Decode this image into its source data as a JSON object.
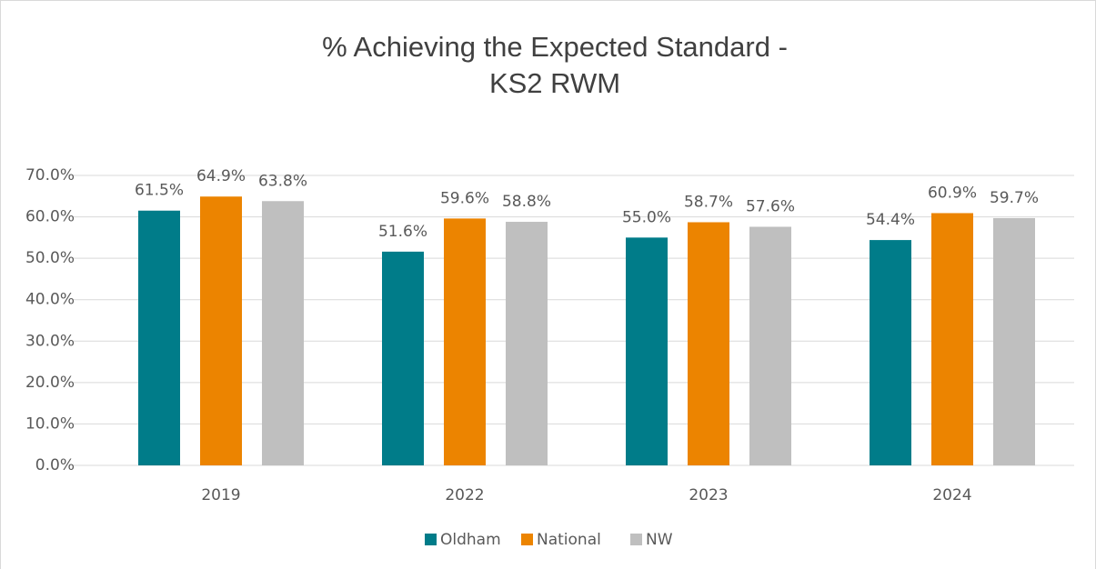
{
  "chart_data": {
    "type": "bar",
    "title": [
      "% Achieving the Expected Standard -",
      "KS2 RWM"
    ],
    "categories": [
      "2019",
      "2022",
      "2023",
      "2024"
    ],
    "series": [
      {
        "name": "Oldham",
        "color": "#007c89",
        "values": [
          61.5,
          51.6,
          55.0,
          54.4
        ],
        "value_labels": [
          "61.5%",
          "51.6%",
          "55.0%",
          "54.4%"
        ]
      },
      {
        "name": "National",
        "color": "#ec8400",
        "values": [
          64.9,
          59.6,
          58.7,
          60.9
        ],
        "value_labels": [
          "64.9%",
          "59.6%",
          "58.7%",
          "60.9%"
        ]
      },
      {
        "name": "NW",
        "color": "#bfbfbf",
        "values": [
          63.8,
          58.8,
          57.6,
          59.7
        ],
        "value_labels": [
          "63.8%",
          "58.8%",
          "57.6%",
          "59.7%"
        ]
      }
    ],
    "ylim": [
      0,
      70
    ],
    "yticks": [
      {
        "value": 0,
        "label": "0.0%"
      },
      {
        "value": 10,
        "label": "10.0%"
      },
      {
        "value": 20,
        "label": "20.0%"
      },
      {
        "value": 30,
        "label": "30.0%"
      },
      {
        "value": 40,
        "label": "40.0%"
      },
      {
        "value": 50,
        "label": "50.0%"
      },
      {
        "value": 60,
        "label": "60.0%"
      },
      {
        "value": 70,
        "label": "70.0%"
      }
    ],
    "grid": true,
    "legend": "bottom"
  }
}
